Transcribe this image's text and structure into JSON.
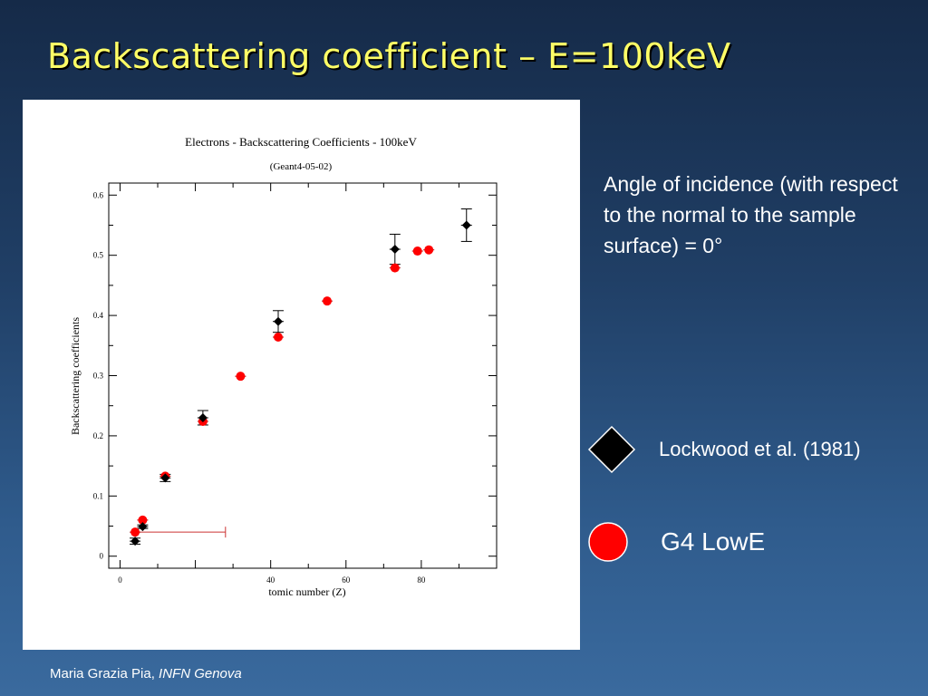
{
  "slide": {
    "title": "Backscattering coefficient – E=100keV",
    "note": "Angle of incidence (with respect to the normal to the sample surface) = 0°",
    "legend": [
      {
        "label": "Lockwood et al. (1981)",
        "marker": "diamond",
        "color": "#000000"
      },
      {
        "label": "G4 LowE",
        "marker": "circle",
        "color": "#ff0000"
      }
    ],
    "footer": {
      "author": "Maria Grazia Pia,",
      "affiliation": "INFN Genova"
    }
  },
  "chart_data": {
    "type": "scatter",
    "title": "Electrons - Backscattering Coefficients - 100keV",
    "subtitle": "(Geant4-05-02)",
    "xlabel": "tomic number (Z)",
    "ylabel": "Backscattering coefficients",
    "xlim": [
      -3,
      100
    ],
    "ylim": [
      -0.02,
      0.62
    ],
    "x_ticks": [
      0,
      40,
      60,
      80
    ],
    "x_ticklabels": [
      "0",
      "40",
      "60",
      "80"
    ],
    "y_ticks": [
      0,
      0.1,
      0.2,
      0.3,
      0.4,
      0.5,
      0.6
    ],
    "y_ticklabels": [
      "0",
      "0.1",
      "0.2",
      "0.3",
      "0.4",
      "0.5",
      "0.6"
    ],
    "grid": false,
    "series": [
      {
        "marker": "diamond",
        "color": "#000000",
        "x": [
          4,
          6,
          12,
          22,
          42,
          73,
          92
        ],
        "y": [
          0.025,
          0.049,
          0.13,
          0.23,
          0.39,
          0.51,
          0.55
        ],
        "yerr": [
          0.005,
          0.003,
          0.006,
          0.012,
          0.018,
          0.025,
          0.027
        ]
      },
      {
        "marker": "circle",
        "color": "#ff0000",
        "x": [
          4,
          6,
          12,
          22,
          32,
          42,
          55,
          73,
          79,
          82
        ],
        "y": [
          0.04,
          0.06,
          0.133,
          0.224,
          0.299,
          0.364,
          0.424,
          0.479,
          0.507,
          0.509
        ]
      }
    ],
    "annotations": [
      {
        "type": "horizontal-errorbar",
        "x_from": 4,
        "x_to": 28,
        "y": 0.04,
        "color": "#cc3333"
      }
    ]
  }
}
